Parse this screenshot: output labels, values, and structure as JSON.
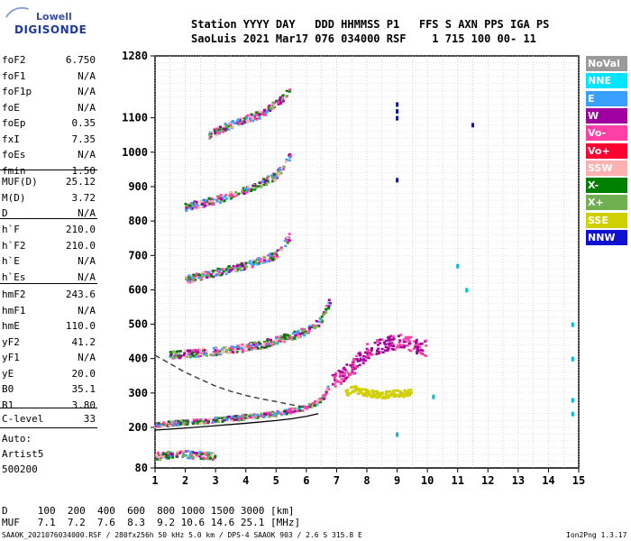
{
  "logo": {
    "line1": "Lowell",
    "line2": "DIGISONDE"
  },
  "header": {
    "line1": "Station YYYY DAY   DDD HHMMSS P1   FFS S AXN PPS IGA PS",
    "line2": "SaoLuis 2021 Mar17 076 034000 RSF    1 715 100 00- 11"
  },
  "params_group1": [
    {
      "name": "foF2",
      "value": "6.750"
    },
    {
      "name": "foF1",
      "value": "N/A"
    },
    {
      "name": "foF1p",
      "value": "N/A"
    },
    {
      "name": "foE",
      "value": "N/A"
    },
    {
      "name": "foEp",
      "value": "0.35"
    },
    {
      "name": "fxI",
      "value": "7.35"
    },
    {
      "name": "foEs",
      "value": "N/A"
    },
    {
      "name": "fmin",
      "value": "1.50"
    }
  ],
  "params_group2": [
    {
      "name": "MUF(D)",
      "value": "25.12"
    },
    {
      "name": "M(D)",
      "value": "3.72"
    },
    {
      "name": "D",
      "value": "N/A"
    }
  ],
  "params_group3": [
    {
      "name": "h`F",
      "value": "210.0"
    },
    {
      "name": "h`F2",
      "value": "210.0"
    },
    {
      "name": "h`E",
      "value": "N/A"
    },
    {
      "name": "h`Es",
      "value": "N/A"
    }
  ],
  "params_group4": [
    {
      "name": "hmF2",
      "value": "243.6"
    },
    {
      "name": "hmF1",
      "value": "N/A"
    },
    {
      "name": "hmE",
      "value": "110.0"
    },
    {
      "name": "yF2",
      "value": "41.2"
    },
    {
      "name": "yF1",
      "value": "N/A"
    },
    {
      "name": "yE",
      "value": "20.0"
    },
    {
      "name": "B0",
      "value": "35.1"
    },
    {
      "name": "B1",
      "value": "3.80"
    }
  ],
  "clevel": {
    "name": "C-level",
    "value": "33"
  },
  "autoscale": {
    "line1": "Auto:",
    "line2": "Artist5",
    "line3": "500200"
  },
  "legend": [
    {
      "label": "NoVal",
      "color": "#9a9a9a"
    },
    {
      "label": "NNE",
      "color": "#00e5ff"
    },
    {
      "label": "E",
      "color": "#3aa0ff"
    },
    {
      "label": "W",
      "color": "#a000a0"
    },
    {
      "label": "Vo-",
      "color": "#ff3fa8"
    },
    {
      "label": "Vo+",
      "color": "#ff0030"
    },
    {
      "label": "SSW",
      "color": "#ffb0b0"
    },
    {
      "label": "X-",
      "color": "#008000"
    },
    {
      "label": "X+",
      "color": "#70b050"
    },
    {
      "label": "SSE",
      "color": "#d0d000"
    },
    {
      "label": "NNW",
      "color": "#1010d0"
    }
  ],
  "footer": {
    "line1": "D     100  200  400  600  800 1000 1500 3000 [km]",
    "line2": "MUF   7.1  7.2  7.6  8.3  9.2 10.6 14.6 25.1 [MHz]",
    "line3": "SAAOK_2021076034000.RSF / 280fx256h 50 kHz 5.0 km / DPS-4 SAAOK 903 / 2.6 S 315.8 E",
    "version": "Ion2Png 1.3.17"
  },
  "chart_data": {
    "type": "scatter",
    "xlabel": "",
    "ylabel": "",
    "xlim": [
      1,
      15
    ],
    "ylim": [
      80,
      1280
    ],
    "x_ticks": [
      1,
      2,
      3,
      4,
      5,
      6,
      7,
      8,
      9,
      10,
      11,
      12,
      13,
      14,
      15
    ],
    "y_ticks": [
      80,
      200,
      300,
      400,
      500,
      600,
      700,
      800,
      900,
      1000,
      1100,
      1280
    ],
    "grid": true,
    "legend_position": "right",
    "echo_traces": [
      {
        "name": "F2 o-trace (1 hop)",
        "x": [
          1.0,
          1.5,
          2.0,
          2.5,
          3.0,
          3.5,
          4.0,
          4.5,
          5.0,
          5.5,
          6.0,
          6.3,
          6.6,
          6.75
        ],
        "y": [
          205,
          212,
          215,
          218,
          222,
          226,
          230,
          235,
          240,
          248,
          258,
          270,
          290,
          320
        ]
      },
      {
        "name": "F2 (2 hop)",
        "x": [
          1.5,
          2.5,
          3.5,
          4.5,
          5.5,
          6.0,
          6.5,
          6.8
        ],
        "y": [
          410,
          418,
          425,
          440,
          465,
          480,
          510,
          570
        ]
      },
      {
        "name": "F2 (3 hop)",
        "x": [
          2.0,
          3.0,
          4.0,
          5.0,
          5.5
        ],
        "y": [
          630,
          650,
          670,
          700,
          760
        ]
      },
      {
        "name": "F2 (4 hop)",
        "x": [
          2.0,
          3.0,
          4.0,
          5.0,
          5.5
        ],
        "y": [
          840,
          860,
          890,
          930,
          990
        ]
      },
      {
        "name": "F2 (5 hop)",
        "x": [
          2.8,
          3.5,
          4.5,
          5.0,
          5.5
        ],
        "y": [
          1050,
          1080,
          1110,
          1140,
          1180
        ]
      },
      {
        "name": "Es trace",
        "x": [
          1.0,
          1.5,
          2.0,
          2.5,
          3.0
        ],
        "y": [
          115,
          118,
          120,
          118,
          115
        ]
      },
      {
        "name": "spread F",
        "x": [
          6.8,
          7.2,
          7.6,
          8.0,
          8.5,
          9.0,
          9.5,
          10.0
        ],
        "y": [
          330,
          350,
          380,
          420,
          440,
          450,
          440,
          430
        ]
      },
      {
        "name": "x-trace",
        "x": [
          7.3,
          7.6,
          8.0,
          8.5,
          9.0,
          9.5
        ],
        "y": [
          300,
          310,
          300,
          295,
          298,
          300
        ]
      }
    ],
    "profile_curves": [
      {
        "name": "true height profile",
        "style": "dashed",
        "x": [
          1.0,
          1.5,
          2.0,
          2.5,
          3.0,
          3.5,
          4.0,
          4.5,
          5.0,
          5.5,
          6.0
        ],
        "y": [
          410,
          385,
          360,
          340,
          320,
          305,
          293,
          283,
          275,
          266,
          258
        ]
      },
      {
        "name": "virtual height fit",
        "style": "solid",
        "x": [
          1.0,
          2.0,
          3.0,
          4.0,
          5.0,
          5.5,
          6.0,
          6.4
        ],
        "y": [
          192,
          198,
          205,
          212,
          220,
          225,
          232,
          240
        ]
      }
    ]
  }
}
